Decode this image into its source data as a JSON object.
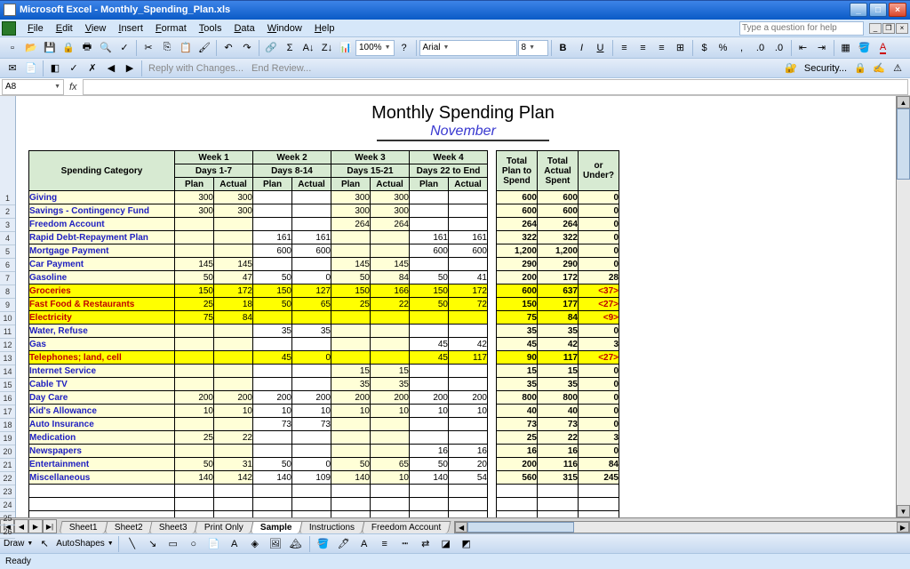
{
  "window": {
    "title": "Microsoft Excel - Monthly_Spending_Plan.xls"
  },
  "menu": {
    "items": [
      "File",
      "Edit",
      "View",
      "Insert",
      "Format",
      "Tools",
      "Data",
      "Window",
      "Help"
    ],
    "helpPlaceholder": "Type a question for help"
  },
  "toolbar": {
    "zoom": "100%",
    "font": "Arial",
    "fontSize": "8"
  },
  "toolbar2": {
    "reply": "Reply with Changes...",
    "endReview": "End Review...",
    "security": "Security..."
  },
  "namebox": {
    "ref": "A8",
    "fx": "fx"
  },
  "title": {
    "main": "Monthly Spending Plan",
    "sub": "November"
  },
  "headers": {
    "category": "Spending Category",
    "weeks": [
      {
        "top": "Week 1",
        "sub": "Days 1-7"
      },
      {
        "top": "Week 2",
        "sub": "Days 8-14"
      },
      {
        "top": "Week 3",
        "sub": "Days 15-21"
      },
      {
        "top": "Week 4",
        "sub": "Days 22 to End"
      }
    ],
    "pa": {
      "plan": "Plan",
      "actual": "Actual"
    },
    "totals": {
      "plan": "Total Plan to Spend",
      "actual": "Total Actual Spent",
      "under": "<Over> or Under?"
    }
  },
  "rows": [
    {
      "n": 1,
      "cat": "Giving",
      "over": false,
      "w": [
        [
          "300",
          "300"
        ],
        [
          "",
          ""
        ],
        [
          "300",
          "300"
        ],
        [
          "",
          ""
        ]
      ],
      "t": [
        "600",
        "600",
        "0"
      ],
      "neg": false
    },
    {
      "n": 2,
      "cat": "Savings - Contingency Fund",
      "over": false,
      "w": [
        [
          "300",
          "300"
        ],
        [
          "",
          ""
        ],
        [
          "300",
          "300"
        ],
        [
          "",
          ""
        ]
      ],
      "t": [
        "600",
        "600",
        "0"
      ],
      "neg": false
    },
    {
      "n": 3,
      "cat": "Freedom Account",
      "over": false,
      "w": [
        [
          "",
          ""
        ],
        [
          "",
          ""
        ],
        [
          "264",
          "264"
        ],
        [
          "",
          ""
        ]
      ],
      "t": [
        "264",
        "264",
        "0"
      ],
      "neg": false
    },
    {
      "n": 4,
      "cat": "Rapid Debt-Repayment Plan",
      "over": false,
      "w": [
        [
          "",
          ""
        ],
        [
          "161",
          "161"
        ],
        [
          "",
          ""
        ],
        [
          "161",
          "161"
        ]
      ],
      "t": [
        "322",
        "322",
        "0"
      ],
      "neg": false
    },
    {
      "n": 5,
      "cat": "Mortgage Payment",
      "over": false,
      "w": [
        [
          "",
          ""
        ],
        [
          "600",
          "600"
        ],
        [
          "",
          ""
        ],
        [
          "600",
          "600"
        ]
      ],
      "t": [
        "1,200",
        "1,200",
        "0"
      ],
      "neg": false
    },
    {
      "n": 6,
      "cat": "Car Payment",
      "over": false,
      "w": [
        [
          "145",
          "145"
        ],
        [
          "",
          ""
        ],
        [
          "145",
          "145"
        ],
        [
          "",
          ""
        ]
      ],
      "t": [
        "290",
        "290",
        "0"
      ],
      "neg": false
    },
    {
      "n": 7,
      "cat": "Gasoline",
      "over": false,
      "w": [
        [
          "50",
          "47"
        ],
        [
          "50",
          "0"
        ],
        [
          "50",
          "84"
        ],
        [
          "50",
          "41"
        ]
      ],
      "t": [
        "200",
        "172",
        "28"
      ],
      "neg": false
    },
    {
      "n": 8,
      "cat": "Groceries",
      "over": true,
      "w": [
        [
          "150",
          "172"
        ],
        [
          "150",
          "127"
        ],
        [
          "150",
          "166"
        ],
        [
          "150",
          "172"
        ]
      ],
      "t": [
        "600",
        "637",
        "<37>"
      ],
      "neg": true
    },
    {
      "n": 9,
      "cat": "Fast Food & Restaurants",
      "over": true,
      "w": [
        [
          "25",
          "18"
        ],
        [
          "50",
          "65"
        ],
        [
          "25",
          "22"
        ],
        [
          "50",
          "72"
        ]
      ],
      "t": [
        "150",
        "177",
        "<27>"
      ],
      "neg": true
    },
    {
      "n": 10,
      "cat": "Electricity",
      "over": true,
      "w": [
        [
          "75",
          "84"
        ],
        [
          "",
          ""
        ],
        [
          "",
          ""
        ],
        [
          "",
          ""
        ]
      ],
      "t": [
        "75",
        "84",
        "<9>"
      ],
      "neg": true
    },
    {
      "n": 11,
      "cat": "Water, Refuse",
      "over": false,
      "w": [
        [
          "",
          ""
        ],
        [
          "35",
          "35"
        ],
        [
          "",
          ""
        ],
        [
          "",
          ""
        ]
      ],
      "t": [
        "35",
        "35",
        "0"
      ],
      "neg": false
    },
    {
      "n": 12,
      "cat": "Gas",
      "over": false,
      "w": [
        [
          "",
          ""
        ],
        [
          "",
          ""
        ],
        [
          "",
          ""
        ],
        [
          "45",
          "42"
        ]
      ],
      "t": [
        "45",
        "42",
        "3"
      ],
      "neg": false
    },
    {
      "n": 13,
      "cat": "Telephones; land, cell",
      "over": true,
      "w": [
        [
          "",
          ""
        ],
        [
          "45",
          "0"
        ],
        [
          "",
          ""
        ],
        [
          "45",
          "117"
        ]
      ],
      "t": [
        "90",
        "117",
        "<27>"
      ],
      "neg": true
    },
    {
      "n": 14,
      "cat": "Internet Service",
      "over": false,
      "w": [
        [
          "",
          ""
        ],
        [
          "",
          ""
        ],
        [
          "15",
          "15"
        ],
        [
          "",
          ""
        ]
      ],
      "t": [
        "15",
        "15",
        "0"
      ],
      "neg": false
    },
    {
      "n": 15,
      "cat": "Cable TV",
      "over": false,
      "w": [
        [
          "",
          ""
        ],
        [
          "",
          ""
        ],
        [
          "35",
          "35"
        ],
        [
          "",
          ""
        ]
      ],
      "t": [
        "35",
        "35",
        "0"
      ],
      "neg": false
    },
    {
      "n": 16,
      "cat": "Day Care",
      "over": false,
      "w": [
        [
          "200",
          "200"
        ],
        [
          "200",
          "200"
        ],
        [
          "200",
          "200"
        ],
        [
          "200",
          "200"
        ]
      ],
      "t": [
        "800",
        "800",
        "0"
      ],
      "neg": false
    },
    {
      "n": 17,
      "cat": "Kid's Allowance",
      "over": false,
      "w": [
        [
          "10",
          "10"
        ],
        [
          "10",
          "10"
        ],
        [
          "10",
          "10"
        ],
        [
          "10",
          "10"
        ]
      ],
      "t": [
        "40",
        "40",
        "0"
      ],
      "neg": false
    },
    {
      "n": 18,
      "cat": "Auto Insurance",
      "over": false,
      "w": [
        [
          "",
          ""
        ],
        [
          "73",
          "73"
        ],
        [
          "",
          ""
        ],
        [
          "",
          ""
        ]
      ],
      "t": [
        "73",
        "73",
        "0"
      ],
      "neg": false
    },
    {
      "n": 19,
      "cat": "Medication",
      "over": false,
      "w": [
        [
          "25",
          "22"
        ],
        [
          "",
          ""
        ],
        [
          "",
          ""
        ],
        [
          "",
          ""
        ]
      ],
      "t": [
        "25",
        "22",
        "3"
      ],
      "neg": false
    },
    {
      "n": 20,
      "cat": "Newspapers",
      "over": false,
      "w": [
        [
          "",
          ""
        ],
        [
          "",
          ""
        ],
        [
          "",
          ""
        ],
        [
          "16",
          "16"
        ]
      ],
      "t": [
        "16",
        "16",
        "0"
      ],
      "neg": false
    },
    {
      "n": 21,
      "cat": "Entertainment",
      "over": false,
      "w": [
        [
          "50",
          "31"
        ],
        [
          "50",
          "0"
        ],
        [
          "50",
          "65"
        ],
        [
          "50",
          "20"
        ]
      ],
      "t": [
        "200",
        "116",
        "84"
      ],
      "neg": false
    },
    {
      "n": 22,
      "cat": "Miscellaneous",
      "over": false,
      "w": [
        [
          "140",
          "142"
        ],
        [
          "140",
          "109"
        ],
        [
          "140",
          "10"
        ],
        [
          "140",
          "54"
        ]
      ],
      "t": [
        "560",
        "315",
        "245"
      ],
      "neg": false
    }
  ],
  "blankRows": [
    23,
    24,
    25,
    26
  ],
  "tabs": {
    "items": [
      "Sheet1",
      "Sheet2",
      "Sheet3",
      "Print Only",
      "Sample",
      "Instructions",
      "Freedom Account"
    ],
    "active": 4
  },
  "drawbar": {
    "draw": "Draw",
    "autoshapes": "AutoShapes"
  },
  "status": {
    "text": "Ready"
  }
}
